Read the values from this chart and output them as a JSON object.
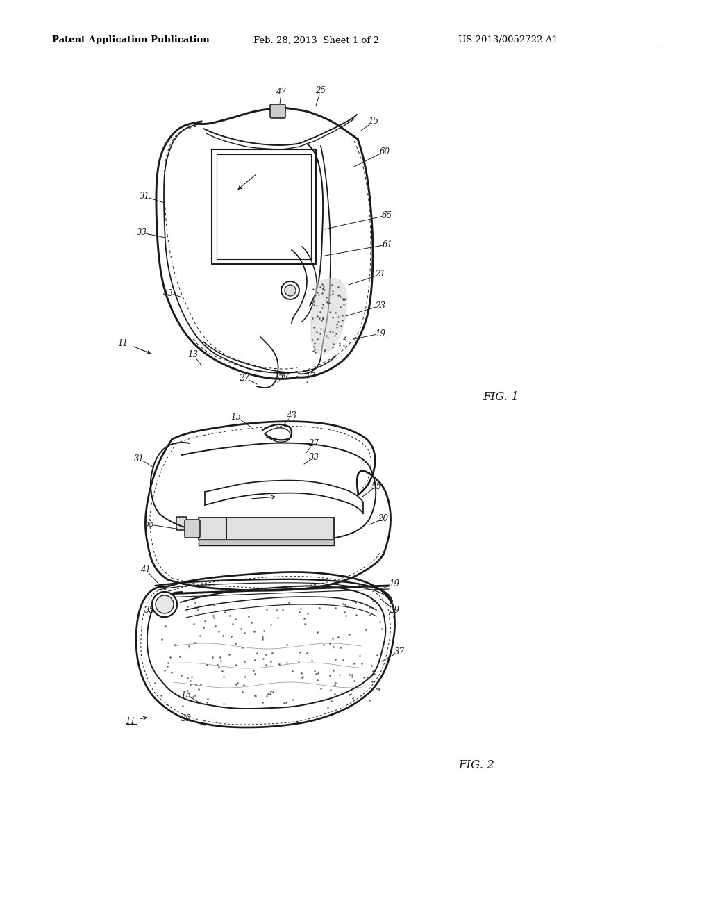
{
  "background_color": "#ffffff",
  "header_left": "Patent Application Publication",
  "header_mid": "Feb. 28, 2013  Sheet 1 of 2",
  "header_right": "US 2013/0052722 A1",
  "fig1_label": "FIG. 1",
  "fig2_label": "FIG. 2",
  "line_color": "#1a1a1a",
  "lw": 1.4
}
